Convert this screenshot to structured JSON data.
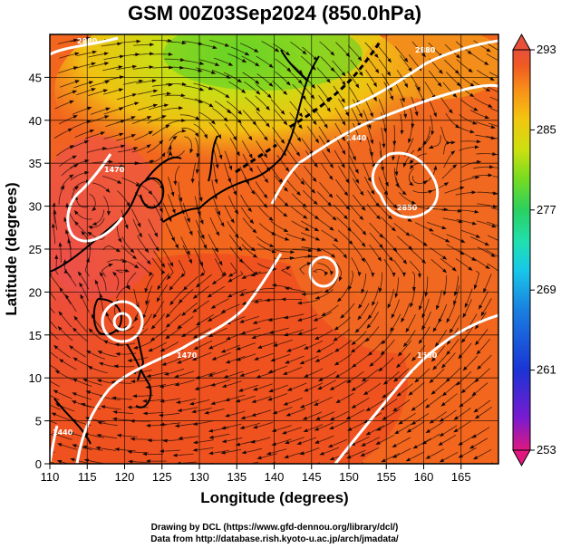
{
  "title": "GSM 00Z03Sep2024 (850.0hPa)",
  "x_axis": {
    "label": "Longitude (degrees)",
    "ticks": [
      "110",
      "115",
      "120",
      "125",
      "130",
      "135",
      "140",
      "145",
      "150",
      "155",
      "160",
      "165"
    ],
    "range": [
      110,
      170
    ]
  },
  "y_axis": {
    "label": "Latitude  (degrees)",
    "ticks": [
      "0",
      "5",
      "10",
      "15",
      "20",
      "25",
      "30",
      "35",
      "40",
      "45"
    ],
    "range": [
      0,
      50
    ]
  },
  "colorbar": {
    "labels": [
      "293",
      "285",
      "277",
      "269",
      "261",
      "253"
    ],
    "range": [
      253,
      293
    ],
    "colors": [
      "#e0187e",
      "#7a1ad0",
      "#1a34d4",
      "#1a7fe0",
      "#18c8e8",
      "#20e0b0",
      "#2ad060",
      "#78dc20",
      "#cce010",
      "#f4c410",
      "#f89018",
      "#f05a22",
      "#e8503a"
    ]
  },
  "contour_labels": [
    "2880",
    "2880",
    "1470",
    "1440",
    "2850",
    "1470",
    "1440",
    "1500"
  ],
  "credits": {
    "line1": "Drawing by DCL (https://www.gfd-dennou.org/library/dcl/)",
    "line2": "Data from http://database.rish.kyoto-u.ac.jp/arch/jmadata/"
  },
  "field": {
    "variable": "temperature",
    "min_value": 253,
    "max_value": 293,
    "pattern": "warm (orange-red) over most of the domain; cooler yellow-green region in the north (35–50N, 125–150E)"
  }
}
